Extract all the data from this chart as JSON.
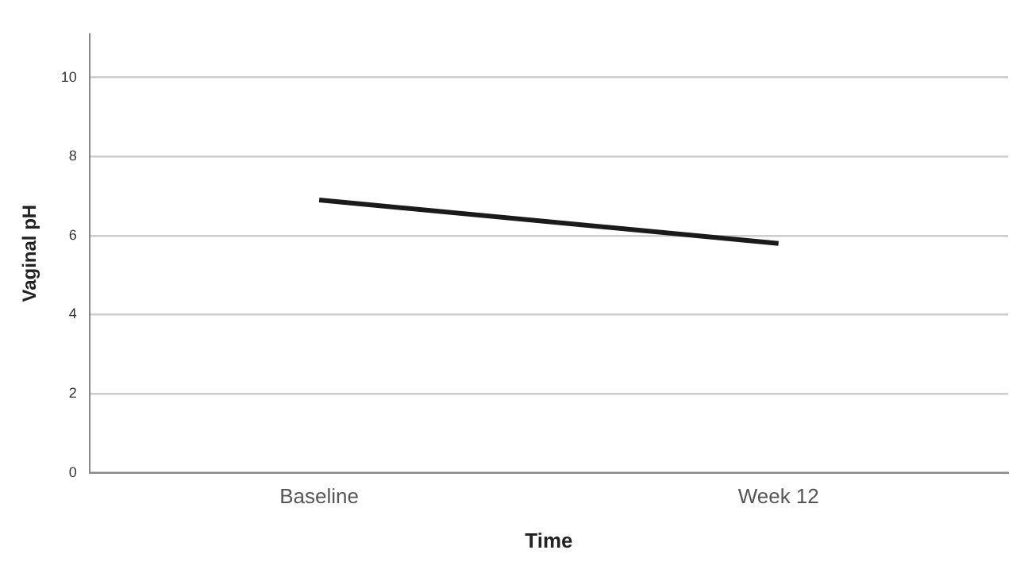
{
  "chart_data": {
    "type": "line",
    "xlabel": "Time",
    "ylabel": "Vaginal pH",
    "categories": [
      "Baseline",
      "Week 12"
    ],
    "series": [
      {
        "color": "#1a1a1a",
        "values": [
          6.9,
          5.8
        ]
      }
    ],
    "ylim": [
      0,
      11.1
    ],
    "yticks": [
      0,
      2,
      4,
      6,
      8,
      10
    ],
    "grid": "y",
    "legend": false,
    "marker": "none",
    "line_style": "solid"
  }
}
